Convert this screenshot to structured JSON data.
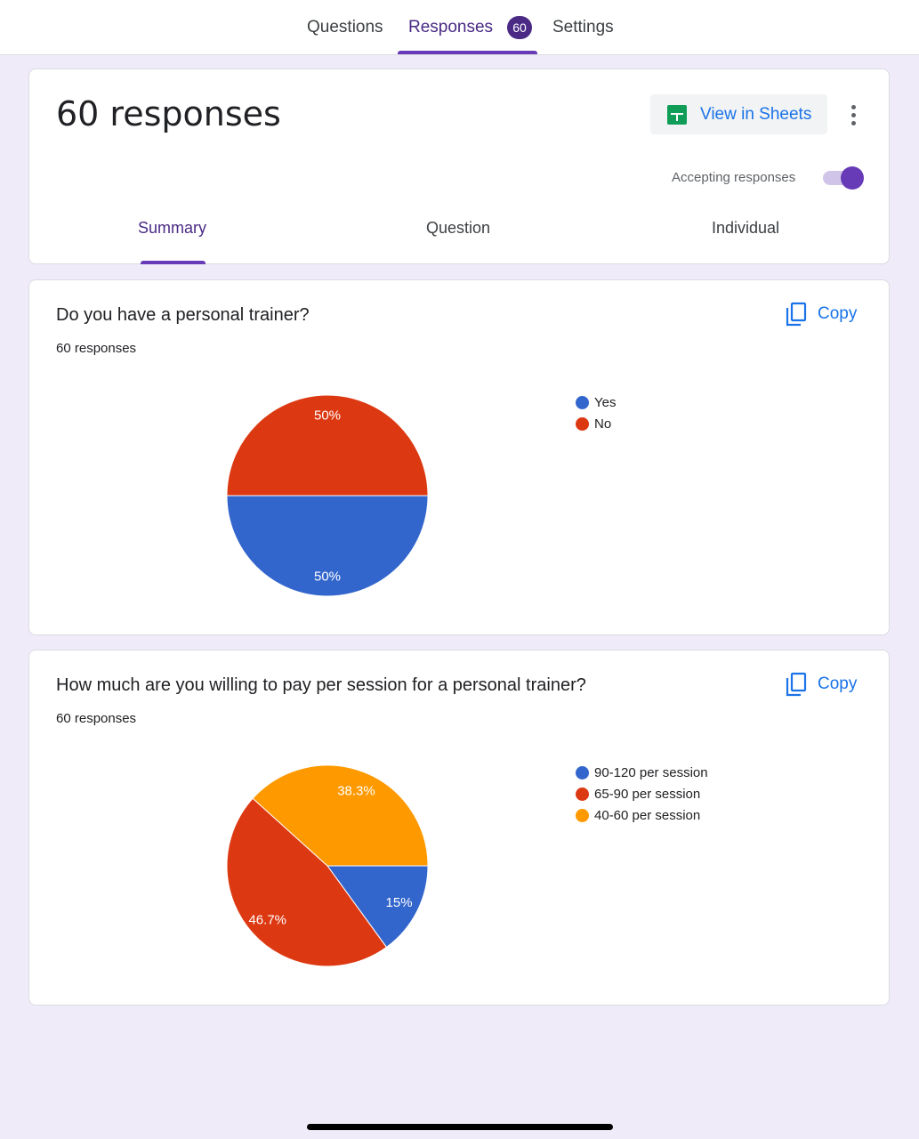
{
  "top_tabs": {
    "questions": "Questions",
    "responses": "Responses",
    "responses_badge": "60",
    "settings": "Settings"
  },
  "summary_card": {
    "title": "60 responses",
    "view_in_sheets": "View in Sheets",
    "accepting_label": "Accepting responses",
    "accepting_on": true,
    "tabs": [
      "Summary",
      "Question",
      "Individual"
    ]
  },
  "questions": [
    {
      "title": "Do you have a personal trainer?",
      "count": "60 responses",
      "copy": "Copy"
    },
    {
      "title": "How much are you willing to pay per session for a personal trainer?",
      "count": "60 responses",
      "copy": "Copy"
    }
  ],
  "chart_data": [
    {
      "type": "pie",
      "categories": [
        "Yes",
        "No"
      ],
      "values": [
        50,
        50
      ],
      "labels": [
        "50%",
        "50%"
      ],
      "colors": [
        "#3366cc",
        "#dc3912"
      ],
      "legend": "right"
    },
    {
      "type": "pie",
      "categories": [
        "90-120 per session",
        "65-90 per session",
        "40-60 per session"
      ],
      "values": [
        15,
        46.7,
        38.3
      ],
      "labels": [
        "15%",
        "46.7%",
        "38.3%"
      ],
      "colors": [
        "#3366cc",
        "#dc3912",
        "#ff9900"
      ],
      "legend": "right"
    }
  ],
  "colors": {
    "accent": "#673ab7",
    "link": "#1a73e8",
    "background": "#f0ebf8"
  },
  "icons": {
    "sheets": "sheets-icon",
    "more": "more-vert-icon",
    "copy": "copy-icon"
  }
}
